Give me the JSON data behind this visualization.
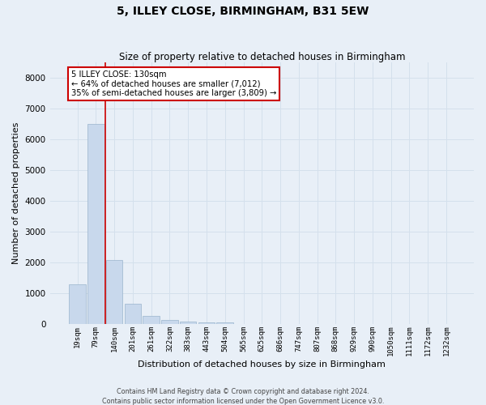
{
  "title": "5, ILLEY CLOSE, BIRMINGHAM, B31 5EW",
  "subtitle": "Size of property relative to detached houses in Birmingham",
  "xlabel": "Distribution of detached houses by size in Birmingham",
  "ylabel": "Number of detached properties",
  "categories": [
    "19sqm",
    "79sqm",
    "140sqm",
    "201sqm",
    "261sqm",
    "322sqm",
    "383sqm",
    "443sqm",
    "504sqm",
    "565sqm",
    "625sqm",
    "686sqm",
    "747sqm",
    "807sqm",
    "868sqm",
    "929sqm",
    "990sqm",
    "1050sqm",
    "1111sqm",
    "1172sqm",
    "1232sqm"
  ],
  "values": [
    1300,
    6500,
    2080,
    660,
    280,
    150,
    100,
    60,
    55,
    0,
    0,
    0,
    0,
    0,
    0,
    0,
    0,
    0,
    0,
    0,
    0
  ],
  "bar_color": "#c8d8ec",
  "bar_edge_color": "#9ab4cc",
  "vline_color": "#cc0000",
  "annotation_text": "5 ILLEY CLOSE: 130sqm\n← 64% of detached houses are smaller (7,012)\n35% of semi-detached houses are larger (3,809) →",
  "annotation_box_facecolor": "#ffffff",
  "annotation_box_edgecolor": "#cc0000",
  "ylim": [
    0,
    8500
  ],
  "yticks": [
    0,
    1000,
    2000,
    3000,
    4000,
    5000,
    6000,
    7000,
    8000
  ],
  "grid_color": "#d4e0ec",
  "background_color": "#e8eff7",
  "footer_line1": "Contains HM Land Registry data © Crown copyright and database right 2024.",
  "footer_line2": "Contains public sector information licensed under the Open Government Licence v3.0.",
  "title_fontsize": 10,
  "subtitle_fontsize": 8.5,
  "tick_fontsize": 6.5,
  "ylabel_fontsize": 8,
  "xlabel_fontsize": 8,
  "footer_fontsize": 5.8,
  "annot_fontsize": 7.2
}
